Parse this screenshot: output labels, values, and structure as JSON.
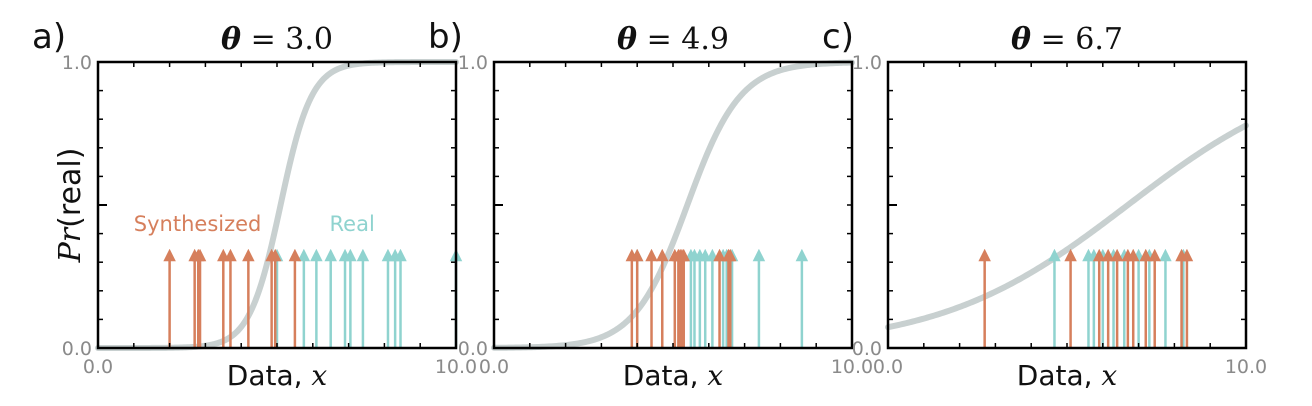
{
  "colors": {
    "synthesized": "#d67f5c",
    "real": "#8fd3cf",
    "curve": "#c8d0d0",
    "axis": "#000000",
    "tick_text": "#8a8a8a"
  },
  "ylabel_italic": "Pr",
  "ylabel_rest": "(real)",
  "chart_data": [
    {
      "type": "line",
      "panel_label": "a)",
      "title_symbol": "θ",
      "title_value": "= 3.0",
      "xlabel_text": "Data, ",
      "xlabel_var": "x",
      "xlim": [
        0,
        10
      ],
      "ylim": [
        0,
        1
      ],
      "x_tick_labels": [
        "0.0",
        "10.0"
      ],
      "y_tick_labels": [
        "0.0",
        "1.0"
      ],
      "curve": {
        "center": 5.1,
        "slope": 2.3
      },
      "synthesized_label": "Synthesized",
      "real_label": "Real",
      "synthesized": [
        2.0,
        2.7,
        2.8,
        2.85,
        3.5,
        3.7,
        4.2,
        4.85,
        4.95,
        5.5
      ],
      "real": [
        5.0,
        5.75,
        6.1,
        6.5,
        6.9,
        7.05,
        7.4,
        8.1,
        8.3,
        8.45,
        10.0
      ]
    },
    {
      "type": "line",
      "panel_label": "b)",
      "title_symbol": "θ",
      "title_value": "= 4.9",
      "xlabel_text": "Data, ",
      "xlabel_var": "x",
      "xlim": [
        0,
        10
      ],
      "ylim": [
        0,
        1
      ],
      "x_tick_labels": [
        "0.0",
        "10.0"
      ],
      "y_tick_labels": [
        "0.0",
        "1.0"
      ],
      "curve": {
        "center": 5.4,
        "slope": 1.35
      },
      "synthesized_label": "",
      "real_label": "",
      "synthesized": [
        3.85,
        4.0,
        4.4,
        4.7,
        5.05,
        5.15,
        5.2,
        5.25,
        5.3,
        6.3,
        6.55,
        6.6
      ],
      "real": [
        4.0,
        5.5,
        5.6,
        5.75,
        5.9,
        6.1,
        6.4,
        6.5,
        6.65,
        7.4,
        8.6
      ]
    },
    {
      "type": "line",
      "panel_label": "c)",
      "title_symbol": "θ",
      "title_value": "= 6.7",
      "xlabel_text": "Data, ",
      "xlabel_var": "x",
      "xlim": [
        0,
        10
      ],
      "ylim": [
        0,
        1
      ],
      "x_tick_labels": [
        "0.0",
        "10.0"
      ],
      "y_tick_labels": [
        "0.0",
        "1.0"
      ],
      "curve": {
        "center": 6.7,
        "slope": 0.38
      },
      "synthesized_label": "",
      "real_label": "",
      "synthesized": [
        2.7,
        5.1,
        5.9,
        6.15,
        6.4,
        6.7,
        6.85,
        7.2,
        7.45,
        8.2,
        8.35
      ],
      "real": [
        4.65,
        5.6,
        5.75,
        6.0,
        6.3,
        6.6,
        7.0,
        7.3,
        7.75,
        8.25
      ]
    }
  ]
}
